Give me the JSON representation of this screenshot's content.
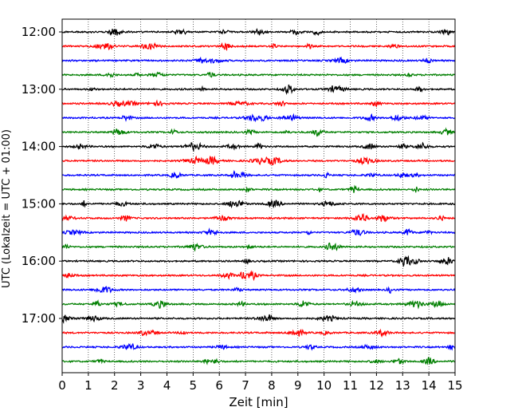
{
  "chart_data": {
    "type": "line",
    "title": "",
    "xlabel": "Zeit  [min]",
    "ylabel": "UTC (Lokalzeit = UTC + 01:00)",
    "xlim": [
      0,
      15
    ],
    "x_ticks": [
      "0",
      "1",
      "2",
      "3",
      "4",
      "5",
      "6",
      "7",
      "8",
      "9",
      "10",
      "11",
      "12",
      "13",
      "14",
      "15"
    ],
    "y_tick_labels": [
      "12:00",
      "13:00",
      "14:00",
      "15:00",
      "16:00",
      "17:00"
    ],
    "grid": "vertical dotted",
    "trace_interval_minutes": 15,
    "trace_color_cycle": [
      "#000000",
      "#ff0000",
      "#0000ff",
      "#007f00"
    ],
    "traces": [
      {
        "start": "12:00",
        "color": "#000000"
      },
      {
        "start": "12:15",
        "color": "#ff0000"
      },
      {
        "start": "12:30",
        "color": "#0000ff"
      },
      {
        "start": "12:45",
        "color": "#007f00"
      },
      {
        "start": "13:00",
        "color": "#000000"
      },
      {
        "start": "13:15",
        "color": "#ff0000"
      },
      {
        "start": "13:30",
        "color": "#0000ff"
      },
      {
        "start": "13:45",
        "color": "#007f00"
      },
      {
        "start": "14:00",
        "color": "#000000"
      },
      {
        "start": "14:15",
        "color": "#ff0000"
      },
      {
        "start": "14:30",
        "color": "#0000ff"
      },
      {
        "start": "14:45",
        "color": "#007f00"
      },
      {
        "start": "15:00",
        "color": "#000000"
      },
      {
        "start": "15:15",
        "color": "#ff0000"
      },
      {
        "start": "15:30",
        "color": "#0000ff"
      },
      {
        "start": "15:45",
        "color": "#007f00"
      },
      {
        "start": "16:00",
        "color": "#000000"
      },
      {
        "start": "16:15",
        "color": "#ff0000"
      },
      {
        "start": "16:30",
        "color": "#0000ff"
      },
      {
        "start": "16:45",
        "color": "#007f00"
      },
      {
        "start": "17:00",
        "color": "#000000"
      },
      {
        "start": "17:15",
        "color": "#ff0000"
      },
      {
        "start": "17:30",
        "color": "#0000ff"
      },
      {
        "start": "17:45",
        "color": "#007f00"
      }
    ]
  }
}
